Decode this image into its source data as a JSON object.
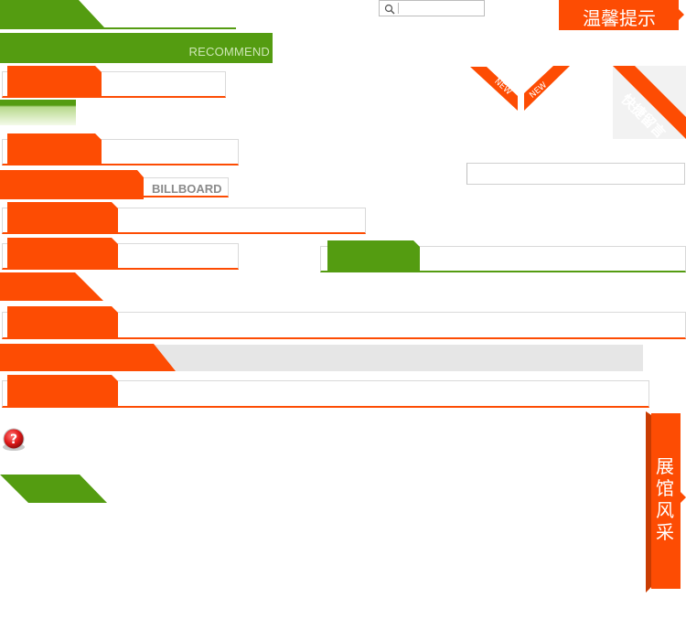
{
  "header": {
    "search_placeholder": "",
    "notice_label": "温馨提示"
  },
  "recommend_label": "RECOMMEND",
  "billboard_label": "BILLBOARD",
  "new_badges": [
    "NEW",
    "NEW"
  ],
  "quick_message_label": "快捷留言",
  "side_tab_label": "展馆风采",
  "colors": {
    "accent_orange": "#fd4c03",
    "accent_green": "#549c11",
    "border_gray": "#d9d9d9",
    "panel_gray": "#e6e6e6"
  },
  "icons": {
    "search": "search-icon",
    "help": "help-question-icon"
  }
}
